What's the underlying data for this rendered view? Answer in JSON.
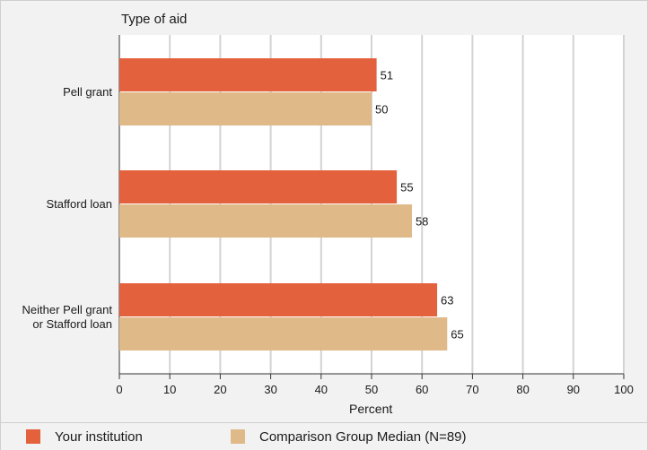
{
  "chart_data": {
    "type": "bar",
    "orientation": "horizontal",
    "ylabel": "Type of aid",
    "xlabel": "Percent",
    "xlim": [
      0,
      100
    ],
    "xticks": [
      0,
      10,
      20,
      30,
      40,
      50,
      60,
      70,
      80,
      90,
      100
    ],
    "grid": true,
    "legend_position": "bottom",
    "categories": [
      "Pell grant",
      "Stafford loan",
      "Neither Pell grant or Stafford loan"
    ],
    "category_lines": [
      [
        "Pell grant"
      ],
      [
        "Stafford loan"
      ],
      [
        "Neither Pell grant",
        "or Stafford loan"
      ]
    ],
    "series": [
      {
        "name": "Your institution",
        "values": [
          51,
          55,
          63
        ],
        "color": "#e4613e"
      },
      {
        "name": "Comparison Group Median (N=89)",
        "values": [
          50,
          58,
          65
        ],
        "color": "#dfb988"
      }
    ]
  }
}
